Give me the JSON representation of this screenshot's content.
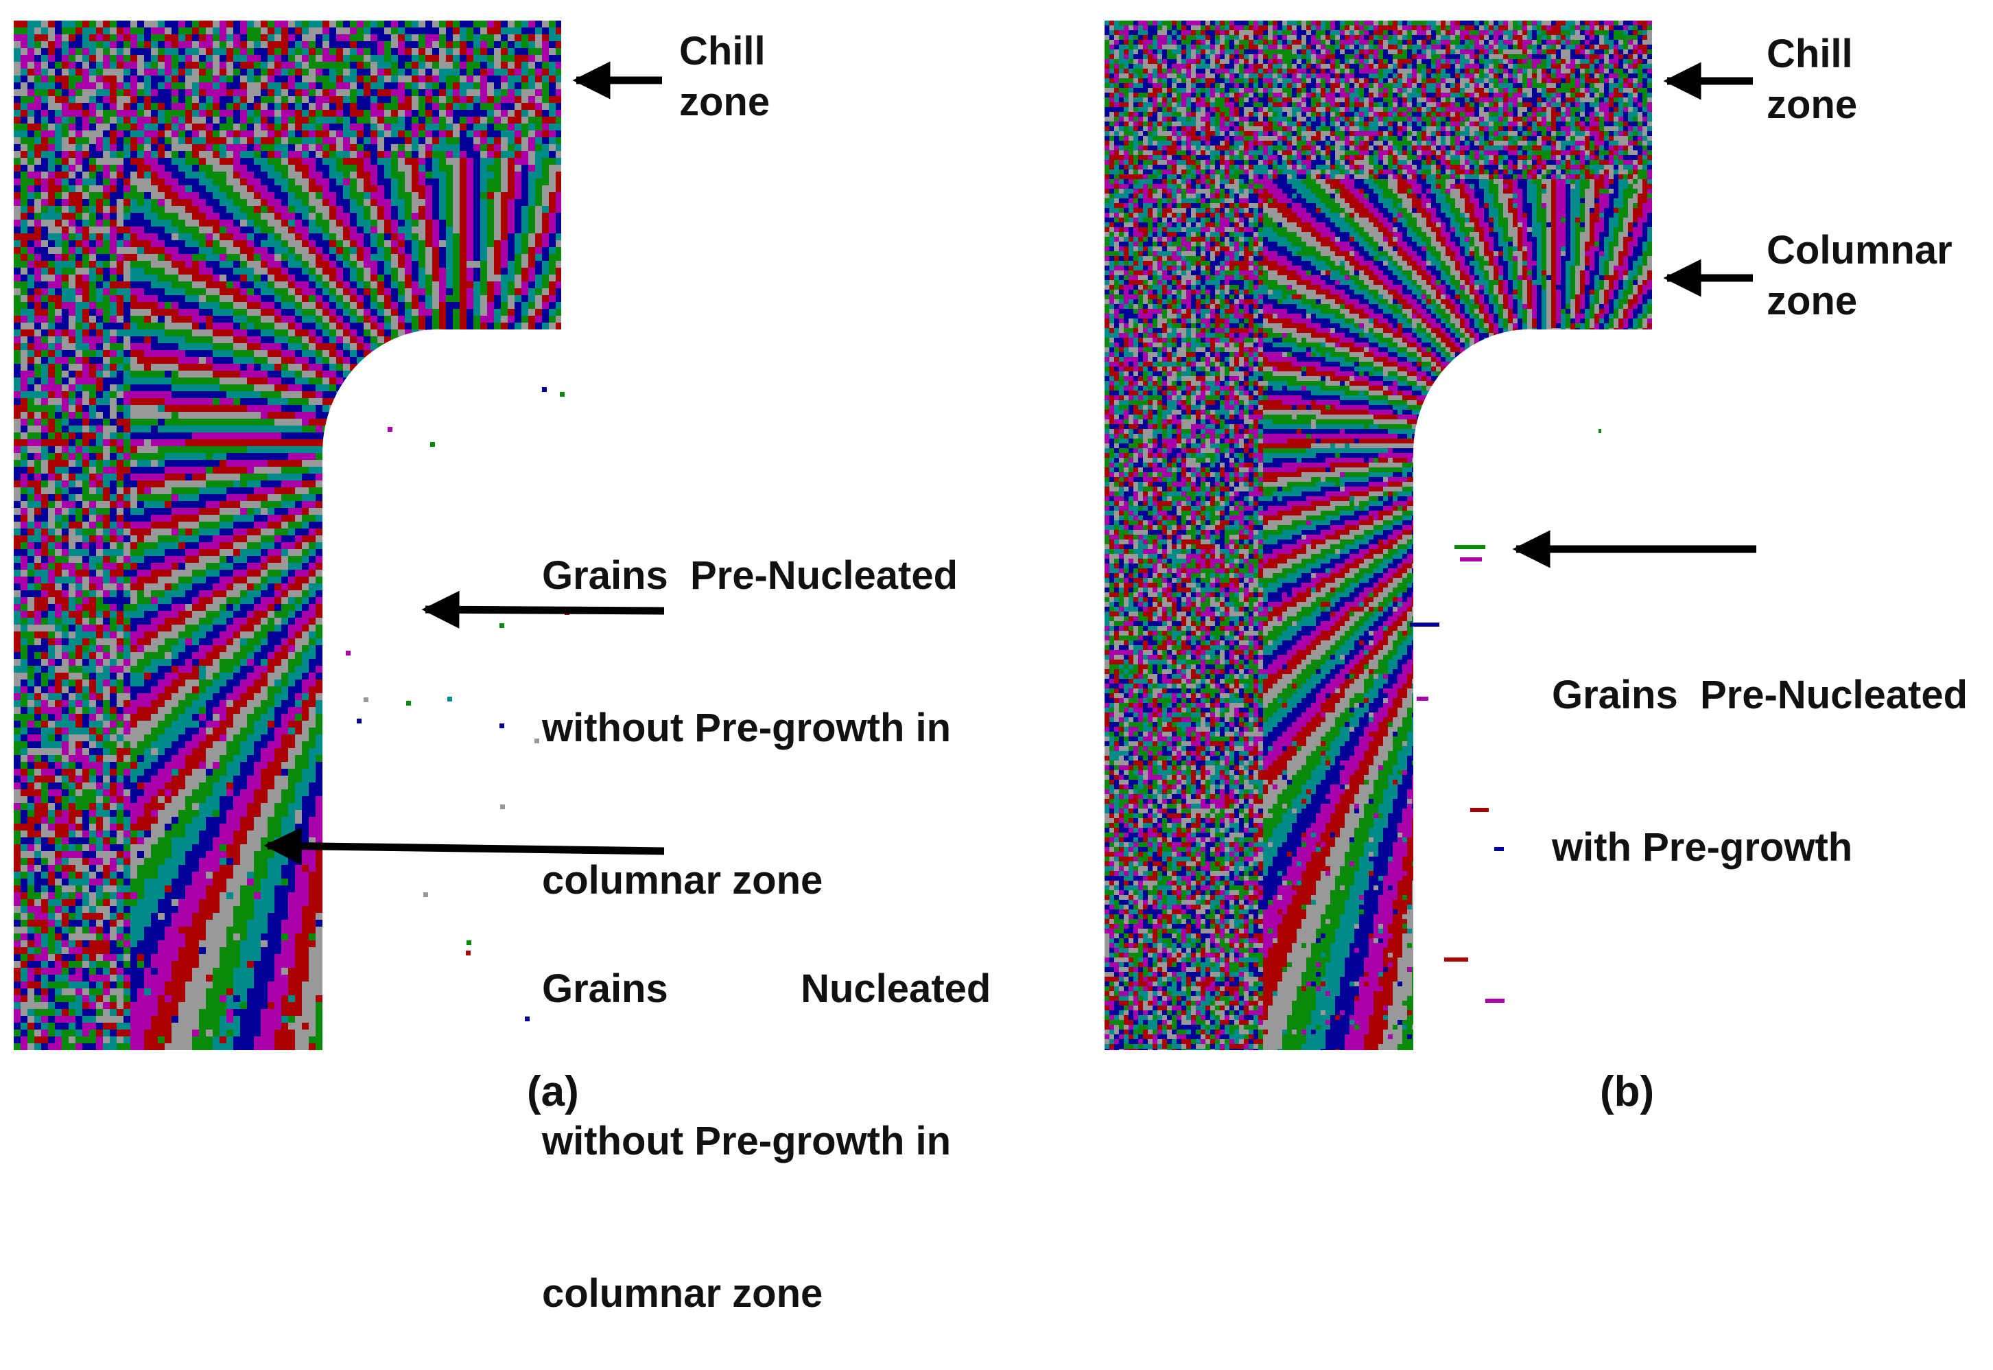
{
  "panel_a": {
    "caption": "(a)",
    "labels": {
      "chill_1": "Chill",
      "chill_2": "zone",
      "pre_nucleated_1": "Grains  Pre-Nucleated",
      "pre_nucleated_2": "without Pre-growth in",
      "pre_nucleated_3": "columnar zone",
      "nucleated_1": "Grains            Nucleated",
      "nucleated_2": "without Pre-growth in",
      "nucleated_3": "columnar zone"
    }
  },
  "panel_b": {
    "caption": "(b)",
    "labels": {
      "chill_1": "Chill",
      "chill_2": "zone",
      "columnar_1": "Columnar",
      "columnar_2": "zone",
      "pre_growth_1": "Grains  Pre-Nucleated",
      "pre_growth_2": "with Pre-growth"
    }
  },
  "colors": {
    "grain_palette": [
      "#aa0000",
      "#aa00aa",
      "#000099",
      "#008b8b",
      "#0a8a0a",
      "#999999"
    ],
    "arrow": "#000000"
  }
}
